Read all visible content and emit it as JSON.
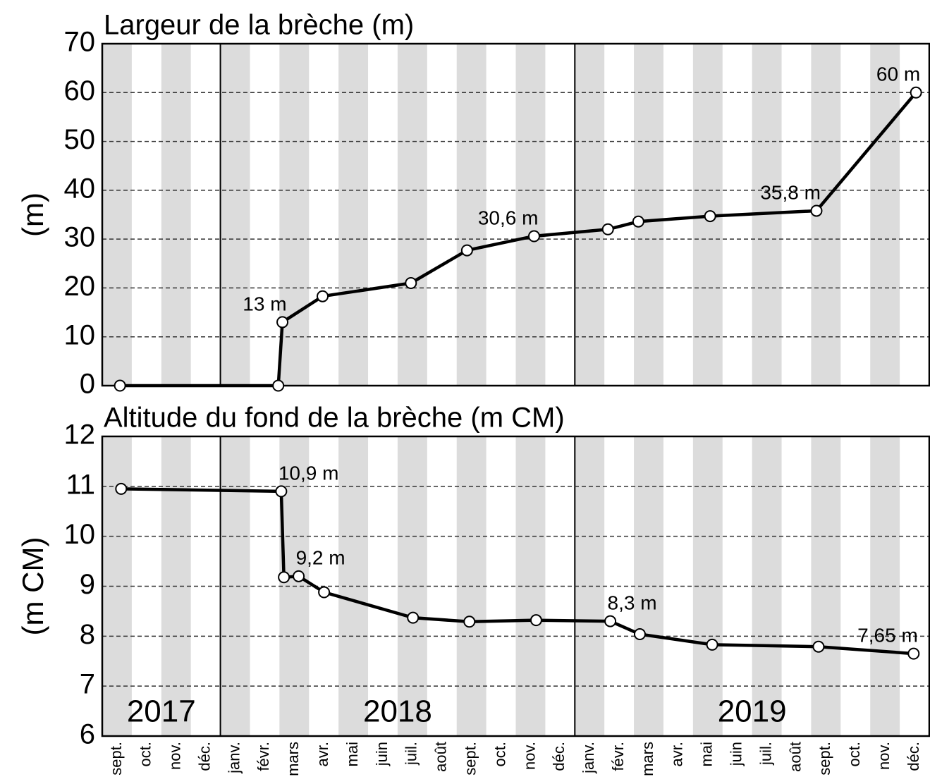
{
  "chart_data": [
    {
      "type": "line",
      "title": "Largeur de la brèche (m)",
      "ylabel": "(m)",
      "color": "#000000",
      "xlim": [
        0,
        28
      ],
      "ylim": [
        0,
        70
      ],
      "yticks": [
        0,
        10,
        20,
        30,
        40,
        50,
        60,
        70
      ],
      "grid": true,
      "x": [
        0.6,
        5.96,
        6.1,
        7.46,
        10.45,
        12.35,
        14.62,
        17.12,
        18.15,
        20.58,
        24.18,
        27.55
      ],
      "values": [
        0,
        0,
        13,
        18.3,
        21,
        27.7,
        30.6,
        32,
        33.6,
        34.7,
        35.8,
        60
      ],
      "value_labels": [
        null,
        null,
        "13 m",
        null,
        null,
        null,
        "30,6 m",
        null,
        null,
        null,
        "35,8 m",
        "60 m"
      ]
    },
    {
      "type": "line",
      "title": "Altitude du fond de la brèche (m CM)",
      "ylabel": "(m CM)",
      "color": "#000000",
      "xlim": [
        0,
        28
      ],
      "ylim": [
        6,
        12
      ],
      "yticks": [
        6,
        7,
        8,
        9,
        10,
        11,
        12
      ],
      "grid": true,
      "categories": [
        "sept.",
        "oct.",
        "nov.",
        "déc.",
        "janv.",
        "févr.",
        "mars",
        "avr.",
        "mai",
        "juin",
        "juil.",
        "août",
        "sept.",
        "oct.",
        "nov.",
        "déc.",
        "janv.",
        "févr.",
        "mars",
        "avr.",
        "mai",
        "juin",
        "juil.",
        "août",
        "sept.",
        "oct.",
        "nov.",
        "déc."
      ],
      "years": [
        "2017",
        "2018",
        "2019"
      ],
      "x": [
        0.64,
        6.06,
        6.15,
        6.65,
        7.51,
        10.52,
        12.43,
        14.69,
        17.2,
        18.2,
        20.65,
        24.25,
        27.47
      ],
      "values": [
        10.95,
        10.9,
        9.18,
        9.2,
        8.88,
        8.37,
        8.29,
        8.32,
        8.3,
        8.04,
        7.83,
        7.79,
        7.65
      ],
      "value_labels": [
        null,
        "10,9 m",
        null,
        "9,2 m",
        null,
        null,
        null,
        null,
        "8,3 m",
        null,
        null,
        null,
        "7,65 m"
      ]
    }
  ]
}
